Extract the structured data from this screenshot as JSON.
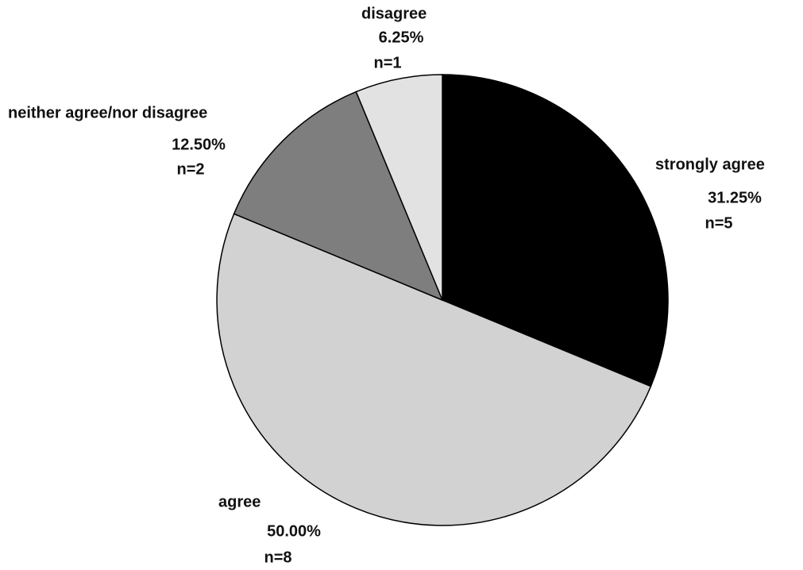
{
  "chart_data": {
    "type": "pie",
    "categories": [
      "strongly agree",
      "agree",
      "neither agree/nor disagree",
      "disagree"
    ],
    "values": [
      31.25,
      50.0,
      12.5,
      6.25
    ],
    "value_labels": [
      "31.25%",
      "50.00%",
      "12.50%",
      "6.25%"
    ],
    "counts": [
      5,
      8,
      2,
      1
    ],
    "count_labels": [
      "n=5",
      "n=8",
      "n=2",
      "n=1"
    ],
    "colors": [
      "#000000",
      "#d2d2d2",
      "#7e7e7e",
      "#e2e2e2"
    ]
  }
}
